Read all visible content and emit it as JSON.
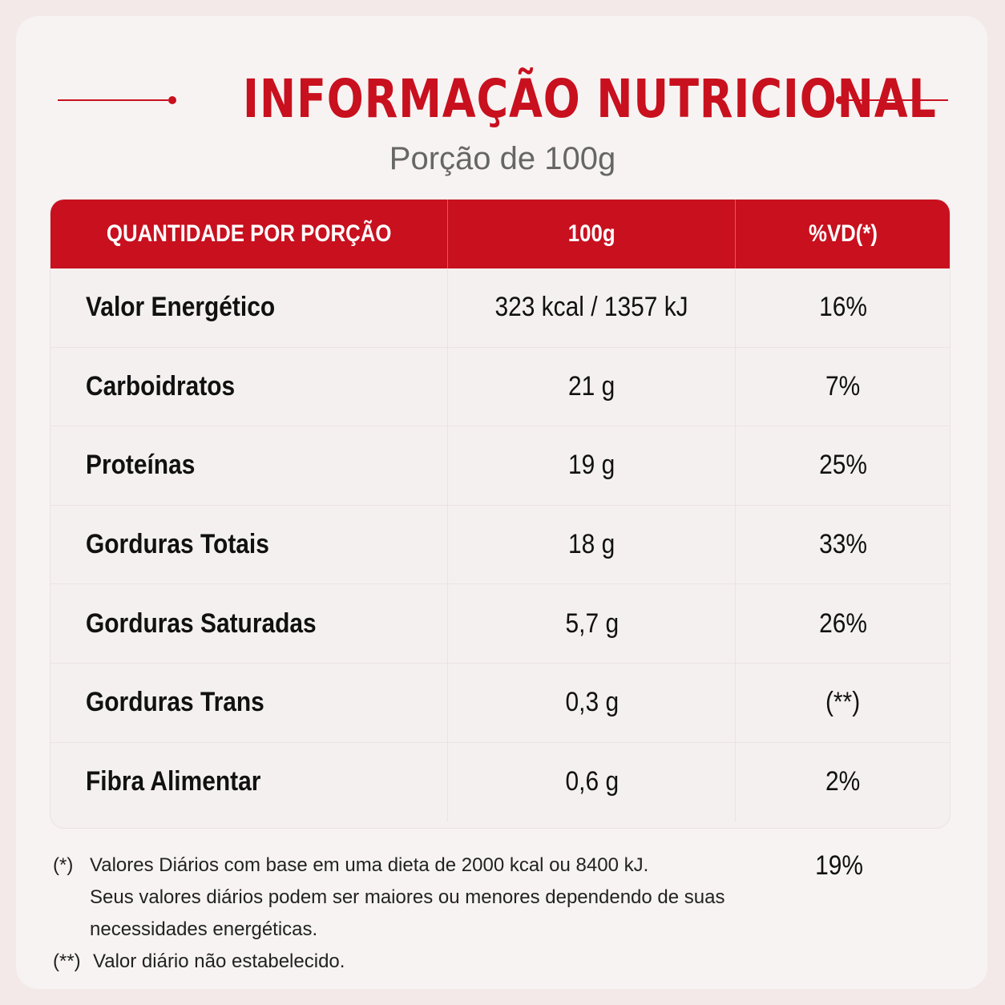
{
  "header": {
    "title": "INFORMAÇÃO NUTRICIONAL",
    "subtitle": "Porção de 100g"
  },
  "table": {
    "columns": [
      "QUANTIDADE POR PORÇÃO",
      "100g",
      "%VD(*)"
    ],
    "rows": [
      {
        "name": "Valor Energético",
        "amount": "323 kcal / 1357 kJ",
        "vd": "16%"
      },
      {
        "name": "Carboidratos",
        "amount": "21 g",
        "vd": "7%"
      },
      {
        "name": "Proteínas",
        "amount": "19 g",
        "vd": "25%"
      },
      {
        "name": "Gorduras Totais",
        "amount": "18 g",
        "vd": "33%"
      },
      {
        "name": "Gorduras Saturadas",
        "amount": "5,7 g",
        "vd": "26%"
      },
      {
        "name": "Gorduras Trans",
        "amount": "0,3 g",
        "vd": "(**)"
      },
      {
        "name": "Fibra Alimentar",
        "amount": "0,6 g",
        "vd": "2%"
      }
    ]
  },
  "extra_vd": "19%",
  "footnotes": [
    {
      "mark": "(*)",
      "lines": [
        "Valores Diários com base em uma dieta de 2000 kcal ou 8400 kJ.",
        "Seus valores diários podem ser maiores ou menores dependendo de suas",
        "necessidades energéticas."
      ]
    },
    {
      "mark": "(**)",
      "lines": [
        "Valor diário não estabelecido."
      ]
    }
  ],
  "colors": {
    "accent": "#c8101e",
    "background": "#f3e9e9",
    "card": "#f8f3f3"
  }
}
